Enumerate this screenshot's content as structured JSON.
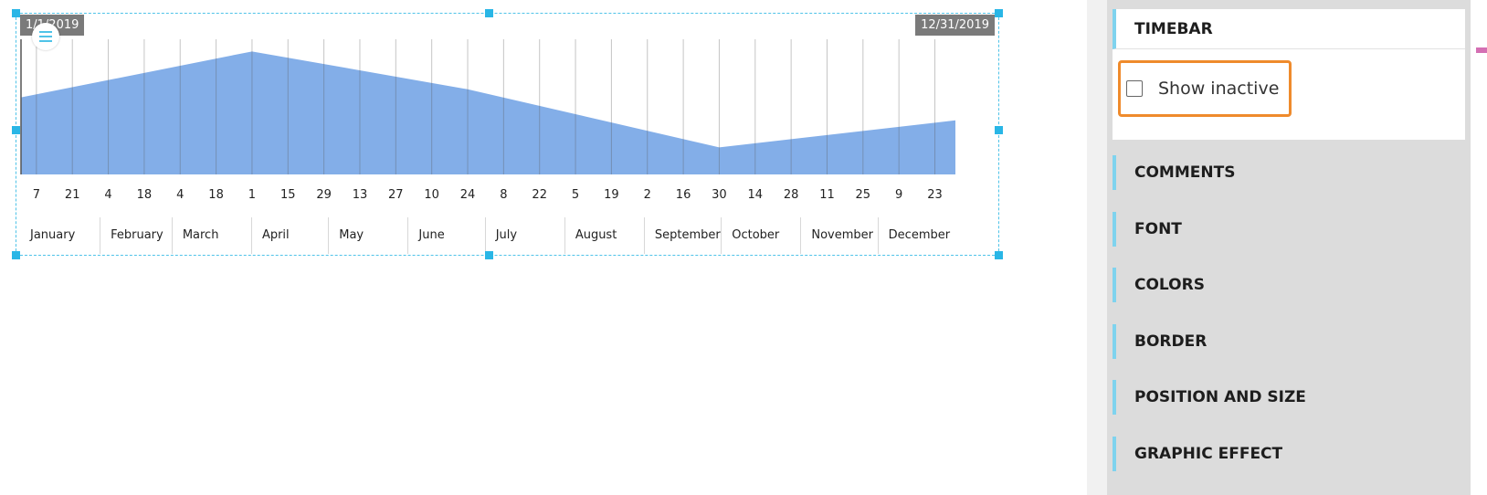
{
  "timebar": {
    "start_date": "1/1/2019",
    "end_date": "12/31/2019",
    "chart_data": {
      "type": "area",
      "color": "#83aee8",
      "x": [
        "2019-01-01",
        "2019-04-01",
        "2019-06-24",
        "2019-09-30",
        "2019-12-31"
      ],
      "values": [
        0.57,
        0.91,
        0.63,
        0.2,
        0.4
      ],
      "ylim": [
        0,
        1
      ],
      "xlim": [
        "2019-01-01",
        "2019-12-31"
      ]
    },
    "day_ticks": [
      "7",
      "21",
      "4",
      "18",
      "4",
      "18",
      "1",
      "15",
      "29",
      "13",
      "27",
      "10",
      "24",
      "8",
      "22",
      "5",
      "19",
      "2",
      "16",
      "30",
      "14",
      "28",
      "11",
      "25",
      "9",
      "23"
    ],
    "months": [
      "January",
      "February",
      "March",
      "April",
      "May",
      "June",
      "July",
      "August",
      "September",
      "October",
      "November",
      "December"
    ]
  },
  "panel": {
    "timebar_section": {
      "title": "TIMEBAR",
      "show_inactive_label": "Show inactive",
      "show_inactive_checked": false
    },
    "sections": [
      "COMMENTS",
      "FONT",
      "COLORS",
      "BORDER",
      "POSITION AND SIZE",
      "GRAPHIC EFFECT"
    ]
  },
  "colors": {
    "accent": "#4fc3e8",
    "section_bar": "#7fd3ee",
    "highlight": "#ef8b2c",
    "area_fill": "#83aee8"
  }
}
